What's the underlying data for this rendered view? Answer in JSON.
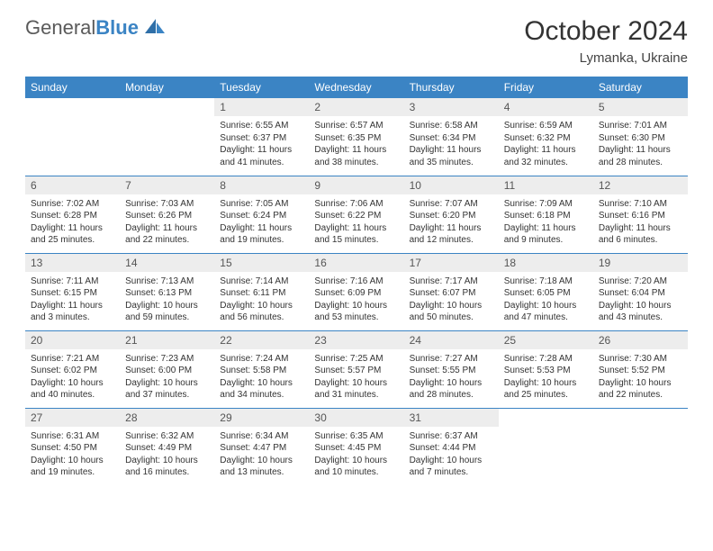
{
  "logo": {
    "text1": "General",
    "text2": "Blue"
  },
  "title": "October 2024",
  "location": "Lymanka, Ukraine",
  "colors": {
    "header_bg": "#3b84c4",
    "header_text": "#ffffff",
    "daynum_bg": "#ededed",
    "border": "#3b84c4",
    "logo_gray": "#5a5a5a",
    "logo_blue": "#3b84c4"
  },
  "weekdays": [
    "Sunday",
    "Monday",
    "Tuesday",
    "Wednesday",
    "Thursday",
    "Friday",
    "Saturday"
  ],
  "weeks": [
    [
      {
        "day": "",
        "sunrise": "",
        "sunset": "",
        "daylight1": "",
        "daylight2": "",
        "empty": true
      },
      {
        "day": "",
        "sunrise": "",
        "sunset": "",
        "daylight1": "",
        "daylight2": "",
        "empty": true
      },
      {
        "day": "1",
        "sunrise": "Sunrise: 6:55 AM",
        "sunset": "Sunset: 6:37 PM",
        "daylight1": "Daylight: 11 hours",
        "daylight2": "and 41 minutes."
      },
      {
        "day": "2",
        "sunrise": "Sunrise: 6:57 AM",
        "sunset": "Sunset: 6:35 PM",
        "daylight1": "Daylight: 11 hours",
        "daylight2": "and 38 minutes."
      },
      {
        "day": "3",
        "sunrise": "Sunrise: 6:58 AM",
        "sunset": "Sunset: 6:34 PM",
        "daylight1": "Daylight: 11 hours",
        "daylight2": "and 35 minutes."
      },
      {
        "day": "4",
        "sunrise": "Sunrise: 6:59 AM",
        "sunset": "Sunset: 6:32 PM",
        "daylight1": "Daylight: 11 hours",
        "daylight2": "and 32 minutes."
      },
      {
        "day": "5",
        "sunrise": "Sunrise: 7:01 AM",
        "sunset": "Sunset: 6:30 PM",
        "daylight1": "Daylight: 11 hours",
        "daylight2": "and 28 minutes."
      }
    ],
    [
      {
        "day": "6",
        "sunrise": "Sunrise: 7:02 AM",
        "sunset": "Sunset: 6:28 PM",
        "daylight1": "Daylight: 11 hours",
        "daylight2": "and 25 minutes."
      },
      {
        "day": "7",
        "sunrise": "Sunrise: 7:03 AM",
        "sunset": "Sunset: 6:26 PM",
        "daylight1": "Daylight: 11 hours",
        "daylight2": "and 22 minutes."
      },
      {
        "day": "8",
        "sunrise": "Sunrise: 7:05 AM",
        "sunset": "Sunset: 6:24 PM",
        "daylight1": "Daylight: 11 hours",
        "daylight2": "and 19 minutes."
      },
      {
        "day": "9",
        "sunrise": "Sunrise: 7:06 AM",
        "sunset": "Sunset: 6:22 PM",
        "daylight1": "Daylight: 11 hours",
        "daylight2": "and 15 minutes."
      },
      {
        "day": "10",
        "sunrise": "Sunrise: 7:07 AM",
        "sunset": "Sunset: 6:20 PM",
        "daylight1": "Daylight: 11 hours",
        "daylight2": "and 12 minutes."
      },
      {
        "day": "11",
        "sunrise": "Sunrise: 7:09 AM",
        "sunset": "Sunset: 6:18 PM",
        "daylight1": "Daylight: 11 hours",
        "daylight2": "and 9 minutes."
      },
      {
        "day": "12",
        "sunrise": "Sunrise: 7:10 AM",
        "sunset": "Sunset: 6:16 PM",
        "daylight1": "Daylight: 11 hours",
        "daylight2": "and 6 minutes."
      }
    ],
    [
      {
        "day": "13",
        "sunrise": "Sunrise: 7:11 AM",
        "sunset": "Sunset: 6:15 PM",
        "daylight1": "Daylight: 11 hours",
        "daylight2": "and 3 minutes."
      },
      {
        "day": "14",
        "sunrise": "Sunrise: 7:13 AM",
        "sunset": "Sunset: 6:13 PM",
        "daylight1": "Daylight: 10 hours",
        "daylight2": "and 59 minutes."
      },
      {
        "day": "15",
        "sunrise": "Sunrise: 7:14 AM",
        "sunset": "Sunset: 6:11 PM",
        "daylight1": "Daylight: 10 hours",
        "daylight2": "and 56 minutes."
      },
      {
        "day": "16",
        "sunrise": "Sunrise: 7:16 AM",
        "sunset": "Sunset: 6:09 PM",
        "daylight1": "Daylight: 10 hours",
        "daylight2": "and 53 minutes."
      },
      {
        "day": "17",
        "sunrise": "Sunrise: 7:17 AM",
        "sunset": "Sunset: 6:07 PM",
        "daylight1": "Daylight: 10 hours",
        "daylight2": "and 50 minutes."
      },
      {
        "day": "18",
        "sunrise": "Sunrise: 7:18 AM",
        "sunset": "Sunset: 6:05 PM",
        "daylight1": "Daylight: 10 hours",
        "daylight2": "and 47 minutes."
      },
      {
        "day": "19",
        "sunrise": "Sunrise: 7:20 AM",
        "sunset": "Sunset: 6:04 PM",
        "daylight1": "Daylight: 10 hours",
        "daylight2": "and 43 minutes."
      }
    ],
    [
      {
        "day": "20",
        "sunrise": "Sunrise: 7:21 AM",
        "sunset": "Sunset: 6:02 PM",
        "daylight1": "Daylight: 10 hours",
        "daylight2": "and 40 minutes."
      },
      {
        "day": "21",
        "sunrise": "Sunrise: 7:23 AM",
        "sunset": "Sunset: 6:00 PM",
        "daylight1": "Daylight: 10 hours",
        "daylight2": "and 37 minutes."
      },
      {
        "day": "22",
        "sunrise": "Sunrise: 7:24 AM",
        "sunset": "Sunset: 5:58 PM",
        "daylight1": "Daylight: 10 hours",
        "daylight2": "and 34 minutes."
      },
      {
        "day": "23",
        "sunrise": "Sunrise: 7:25 AM",
        "sunset": "Sunset: 5:57 PM",
        "daylight1": "Daylight: 10 hours",
        "daylight2": "and 31 minutes."
      },
      {
        "day": "24",
        "sunrise": "Sunrise: 7:27 AM",
        "sunset": "Sunset: 5:55 PM",
        "daylight1": "Daylight: 10 hours",
        "daylight2": "and 28 minutes."
      },
      {
        "day": "25",
        "sunrise": "Sunrise: 7:28 AM",
        "sunset": "Sunset: 5:53 PM",
        "daylight1": "Daylight: 10 hours",
        "daylight2": "and 25 minutes."
      },
      {
        "day": "26",
        "sunrise": "Sunrise: 7:30 AM",
        "sunset": "Sunset: 5:52 PM",
        "daylight1": "Daylight: 10 hours",
        "daylight2": "and 22 minutes."
      }
    ],
    [
      {
        "day": "27",
        "sunrise": "Sunrise: 6:31 AM",
        "sunset": "Sunset: 4:50 PM",
        "daylight1": "Daylight: 10 hours",
        "daylight2": "and 19 minutes."
      },
      {
        "day": "28",
        "sunrise": "Sunrise: 6:32 AM",
        "sunset": "Sunset: 4:49 PM",
        "daylight1": "Daylight: 10 hours",
        "daylight2": "and 16 minutes."
      },
      {
        "day": "29",
        "sunrise": "Sunrise: 6:34 AM",
        "sunset": "Sunset: 4:47 PM",
        "daylight1": "Daylight: 10 hours",
        "daylight2": "and 13 minutes."
      },
      {
        "day": "30",
        "sunrise": "Sunrise: 6:35 AM",
        "sunset": "Sunset: 4:45 PM",
        "daylight1": "Daylight: 10 hours",
        "daylight2": "and 10 minutes."
      },
      {
        "day": "31",
        "sunrise": "Sunrise: 6:37 AM",
        "sunset": "Sunset: 4:44 PM",
        "daylight1": "Daylight: 10 hours",
        "daylight2": "and 7 minutes."
      },
      {
        "day": "",
        "sunrise": "",
        "sunset": "",
        "daylight1": "",
        "daylight2": "",
        "empty": true
      },
      {
        "day": "",
        "sunrise": "",
        "sunset": "",
        "daylight1": "",
        "daylight2": "",
        "empty": true
      }
    ]
  ]
}
